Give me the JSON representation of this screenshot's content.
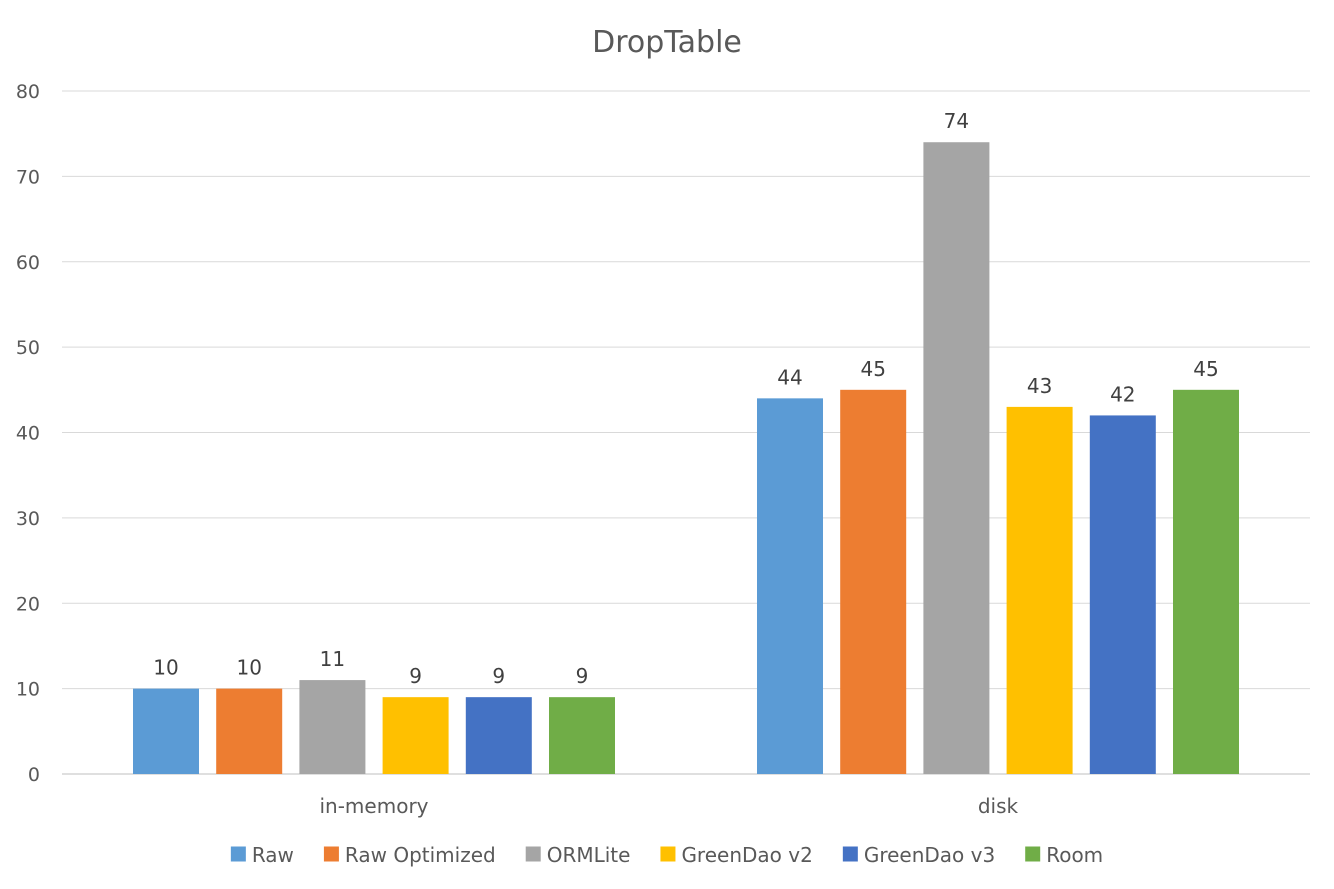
{
  "chart_data": {
    "type": "bar",
    "title": "DropTable",
    "xlabel": "",
    "ylabel": "",
    "categories": [
      "in-memory",
      "disk"
    ],
    "ylim": [
      0,
      80
    ],
    "yticks": [
      0,
      10,
      20,
      30,
      40,
      50,
      60,
      70,
      80
    ],
    "grid": true,
    "legend_position": "bottom",
    "series": [
      {
        "name": "Raw",
        "color": "#5b9bd5",
        "values": [
          10,
          44
        ]
      },
      {
        "name": "Raw Optimized",
        "color": "#ed7d31",
        "values": [
          10,
          45
        ]
      },
      {
        "name": "ORMLite",
        "color": "#a5a5a5",
        "values": [
          11,
          74
        ]
      },
      {
        "name": "GreenDao v2",
        "color": "#ffc000",
        "values": [
          9,
          43
        ]
      },
      {
        "name": "GreenDao v3",
        "color": "#4472c4",
        "values": [
          9,
          42
        ]
      },
      {
        "name": "Room",
        "color": "#70ad47",
        "values": [
          9,
          45
        ]
      }
    ]
  }
}
